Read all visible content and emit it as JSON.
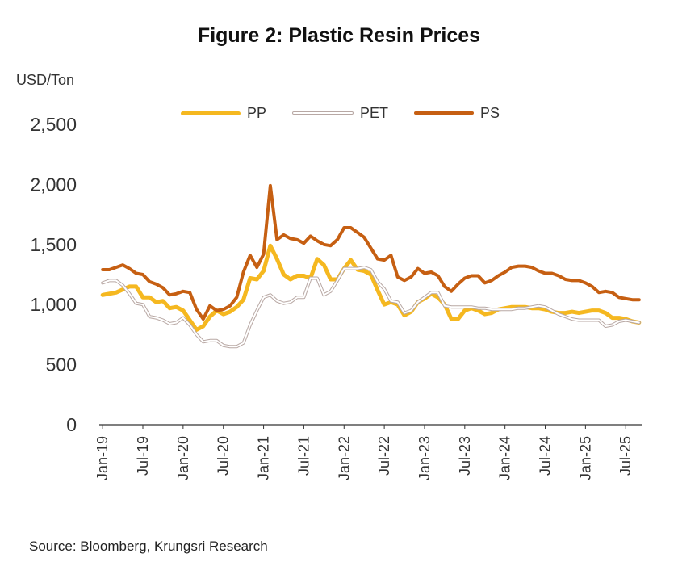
{
  "chart_data": {
    "type": "line",
    "title": "Figure 2: Plastic Resin Prices",
    "ylabel": "USD/Ton",
    "xlabel": "",
    "ylim": [
      0,
      2500
    ],
    "yticks": [
      0,
      500,
      1000,
      1500,
      2000,
      2500
    ],
    "ytick_labels": [
      "0",
      "500",
      "1,000",
      "1,500",
      "2,000",
      "2,500"
    ],
    "xtick_labels": [
      "Jan-19",
      "Jul-19",
      "Jan-20",
      "Jul-20",
      "Jan-21",
      "Jul-21",
      "Jan-22",
      "Jul-22",
      "Jan-23",
      "Jul-23",
      "Jan-24",
      "Jul-24",
      "Jan-25",
      "Jul-25"
    ],
    "xtick_months": [
      0,
      6,
      12,
      18,
      24,
      30,
      36,
      42,
      48,
      54,
      60,
      66,
      72,
      78
    ],
    "n_months": 81,
    "legend_position": "top",
    "grid": false,
    "series": [
      {
        "name": "PP",
        "color": "#F5B820",
        "width": 5,
        "keypoints": [
          [
            0,
            1080
          ],
          [
            2,
            1100
          ],
          [
            4,
            1150
          ],
          [
            5,
            1150
          ],
          [
            6,
            1060
          ],
          [
            7,
            1060
          ],
          [
            8,
            1020
          ],
          [
            9,
            1030
          ],
          [
            10,
            970
          ],
          [
            11,
            980
          ],
          [
            12,
            950
          ],
          [
            13,
            870
          ],
          [
            14,
            790
          ],
          [
            15,
            820
          ],
          [
            16,
            900
          ],
          [
            17,
            950
          ],
          [
            18,
            920
          ],
          [
            19,
            940
          ],
          [
            20,
            980
          ],
          [
            21,
            1040
          ],
          [
            22,
            1220
          ],
          [
            23,
            1210
          ],
          [
            24,
            1280
          ],
          [
            25,
            1490
          ],
          [
            26,
            1380
          ],
          [
            27,
            1250
          ],
          [
            28,
            1210
          ],
          [
            29,
            1240
          ],
          [
            30,
            1240
          ],
          [
            31,
            1220
          ],
          [
            32,
            1380
          ],
          [
            33,
            1330
          ],
          [
            34,
            1210
          ],
          [
            35,
            1210
          ],
          [
            36,
            1300
          ],
          [
            37,
            1370
          ],
          [
            38,
            1290
          ],
          [
            39,
            1280
          ],
          [
            40,
            1250
          ],
          [
            41,
            1120
          ],
          [
            42,
            1000
          ],
          [
            43,
            1020
          ],
          [
            44,
            1000
          ],
          [
            45,
            910
          ],
          [
            46,
            940
          ],
          [
            47,
            1020
          ],
          [
            48,
            1050
          ],
          [
            49,
            1090
          ],
          [
            50,
            1060
          ],
          [
            51,
            1000
          ],
          [
            52,
            880
          ],
          [
            53,
            880
          ],
          [
            54,
            950
          ],
          [
            55,
            970
          ],
          [
            56,
            950
          ],
          [
            57,
            920
          ],
          [
            58,
            930
          ],
          [
            59,
            960
          ],
          [
            60,
            970
          ],
          [
            61,
            980
          ],
          [
            62,
            980
          ],
          [
            63,
            980
          ],
          [
            64,
            970
          ],
          [
            65,
            970
          ],
          [
            66,
            960
          ],
          [
            67,
            940
          ],
          [
            68,
            930
          ],
          [
            69,
            930
          ],
          [
            70,
            940
          ],
          [
            71,
            930
          ],
          [
            72,
            940
          ],
          [
            73,
            950
          ],
          [
            74,
            950
          ],
          [
            75,
            930
          ],
          [
            76,
            890
          ],
          [
            77,
            890
          ],
          [
            78,
            880
          ],
          [
            79,
            860
          ],
          [
            80,
            850
          ]
        ]
      },
      {
        "name": "PET",
        "color": "#B8A8A4",
        "width": 4,
        "hollow": true,
        "keypoints": [
          [
            0,
            1180
          ],
          [
            1,
            1200
          ],
          [
            2,
            1200
          ],
          [
            3,
            1160
          ],
          [
            4,
            1090
          ],
          [
            5,
            1010
          ],
          [
            6,
            1000
          ],
          [
            7,
            900
          ],
          [
            8,
            890
          ],
          [
            9,
            870
          ],
          [
            10,
            840
          ],
          [
            11,
            850
          ],
          [
            12,
            890
          ],
          [
            13,
            830
          ],
          [
            14,
            750
          ],
          [
            15,
            690
          ],
          [
            16,
            700
          ],
          [
            17,
            700
          ],
          [
            18,
            660
          ],
          [
            19,
            650
          ],
          [
            20,
            650
          ],
          [
            21,
            680
          ],
          [
            22,
            830
          ],
          [
            23,
            950
          ],
          [
            24,
            1060
          ],
          [
            25,
            1080
          ],
          [
            26,
            1030
          ],
          [
            27,
            1010
          ],
          [
            28,
            1020
          ],
          [
            29,
            1060
          ],
          [
            30,
            1060
          ],
          [
            31,
            1220
          ],
          [
            32,
            1220
          ],
          [
            33,
            1080
          ],
          [
            34,
            1110
          ],
          [
            35,
            1200
          ],
          [
            36,
            1300
          ],
          [
            37,
            1300
          ],
          [
            38,
            1300
          ],
          [
            39,
            1310
          ],
          [
            40,
            1290
          ],
          [
            41,
            1190
          ],
          [
            42,
            1130
          ],
          [
            43,
            1030
          ],
          [
            44,
            1020
          ],
          [
            45,
            930
          ],
          [
            46,
            950
          ],
          [
            47,
            1020
          ],
          [
            48,
            1060
          ],
          [
            49,
            1100
          ],
          [
            50,
            1100
          ],
          [
            51,
            990
          ],
          [
            52,
            980
          ],
          [
            53,
            980
          ],
          [
            54,
            980
          ],
          [
            55,
            980
          ],
          [
            56,
            970
          ],
          [
            57,
            970
          ],
          [
            58,
            960
          ],
          [
            59,
            960
          ],
          [
            60,
            960
          ],
          [
            61,
            960
          ],
          [
            62,
            970
          ],
          [
            63,
            970
          ],
          [
            64,
            980
          ],
          [
            65,
            990
          ],
          [
            66,
            980
          ],
          [
            67,
            950
          ],
          [
            68,
            920
          ],
          [
            69,
            900
          ],
          [
            70,
            880
          ],
          [
            71,
            870
          ],
          [
            72,
            870
          ],
          [
            73,
            870
          ],
          [
            74,
            870
          ],
          [
            75,
            820
          ],
          [
            76,
            830
          ],
          [
            77,
            860
          ],
          [
            78,
            870
          ],
          [
            79,
            860
          ],
          [
            80,
            850
          ]
        ]
      },
      {
        "name": "PS",
        "color": "#C65F12",
        "width": 4,
        "keypoints": [
          [
            0,
            1290
          ],
          [
            1,
            1290
          ],
          [
            2,
            1310
          ],
          [
            3,
            1330
          ],
          [
            4,
            1300
          ],
          [
            5,
            1260
          ],
          [
            6,
            1250
          ],
          [
            7,
            1190
          ],
          [
            8,
            1170
          ],
          [
            9,
            1140
          ],
          [
            10,
            1080
          ],
          [
            11,
            1090
          ],
          [
            12,
            1110
          ],
          [
            13,
            1100
          ],
          [
            14,
            960
          ],
          [
            15,
            880
          ],
          [
            16,
            990
          ],
          [
            17,
            950
          ],
          [
            18,
            960
          ],
          [
            19,
            990
          ],
          [
            20,
            1060
          ],
          [
            21,
            1270
          ],
          [
            22,
            1410
          ],
          [
            23,
            1310
          ],
          [
            24,
            1420
          ],
          [
            25,
            1990
          ],
          [
            26,
            1540
          ],
          [
            27,
            1580
          ],
          [
            28,
            1550
          ],
          [
            29,
            1540
          ],
          [
            30,
            1510
          ],
          [
            31,
            1570
          ],
          [
            32,
            1530
          ],
          [
            33,
            1500
          ],
          [
            34,
            1490
          ],
          [
            35,
            1540
          ],
          [
            36,
            1640
          ],
          [
            37,
            1640
          ],
          [
            38,
            1600
          ],
          [
            39,
            1560
          ],
          [
            40,
            1470
          ],
          [
            41,
            1380
          ],
          [
            42,
            1370
          ],
          [
            43,
            1410
          ],
          [
            44,
            1230
          ],
          [
            45,
            1200
          ],
          [
            46,
            1230
          ],
          [
            47,
            1300
          ],
          [
            48,
            1260
          ],
          [
            49,
            1270
          ],
          [
            50,
            1240
          ],
          [
            51,
            1150
          ],
          [
            52,
            1110
          ],
          [
            53,
            1170
          ],
          [
            54,
            1220
          ],
          [
            55,
            1240
          ],
          [
            56,
            1240
          ],
          [
            57,
            1180
          ],
          [
            58,
            1200
          ],
          [
            59,
            1240
          ],
          [
            60,
            1270
          ],
          [
            61,
            1310
          ],
          [
            62,
            1320
          ],
          [
            63,
            1320
          ],
          [
            64,
            1310
          ],
          [
            65,
            1280
          ],
          [
            66,
            1260
          ],
          [
            67,
            1260
          ],
          [
            68,
            1240
          ],
          [
            69,
            1210
          ],
          [
            70,
            1200
          ],
          [
            71,
            1200
          ],
          [
            72,
            1180
          ],
          [
            73,
            1150
          ],
          [
            74,
            1100
          ],
          [
            75,
            1110
          ],
          [
            76,
            1100
          ],
          [
            77,
            1060
          ],
          [
            78,
            1050
          ],
          [
            79,
            1040
          ],
          [
            80,
            1040
          ]
        ]
      }
    ]
  },
  "source": "Source: Bloomberg, Krungsri Research"
}
